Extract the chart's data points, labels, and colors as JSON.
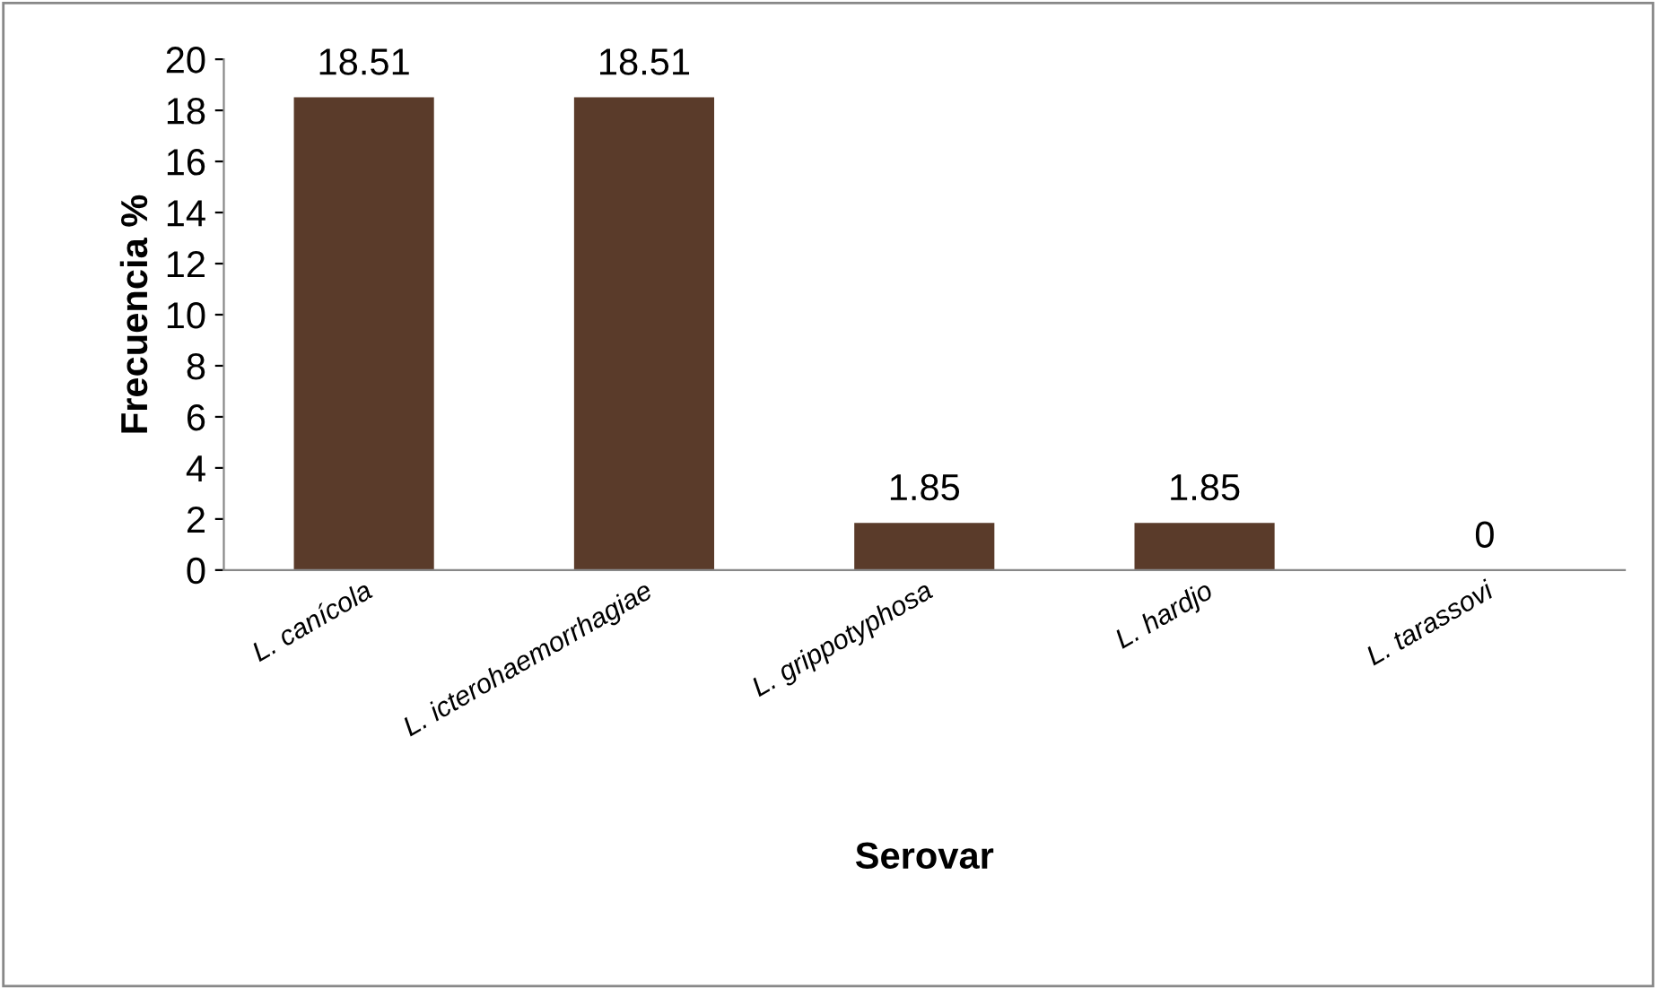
{
  "chart_data": {
    "type": "bar",
    "xlabel": "Serovar",
    "ylabel": "Frecuencia %",
    "categories": [
      "L. canícola",
      "L. icterohaemorrhagiae",
      "L. grippotyphosa",
      "L. hardjo",
      "L. tarassovi"
    ],
    "values": [
      18.51,
      18.51,
      1.85,
      1.85,
      0
    ],
    "color": "#5a3b2a",
    "ylim": [
      0,
      20
    ],
    "yticks": [
      0,
      2,
      4,
      6,
      8,
      10,
      12,
      14,
      16,
      18,
      20
    ],
    "grid": false,
    "data_labels": true
  }
}
